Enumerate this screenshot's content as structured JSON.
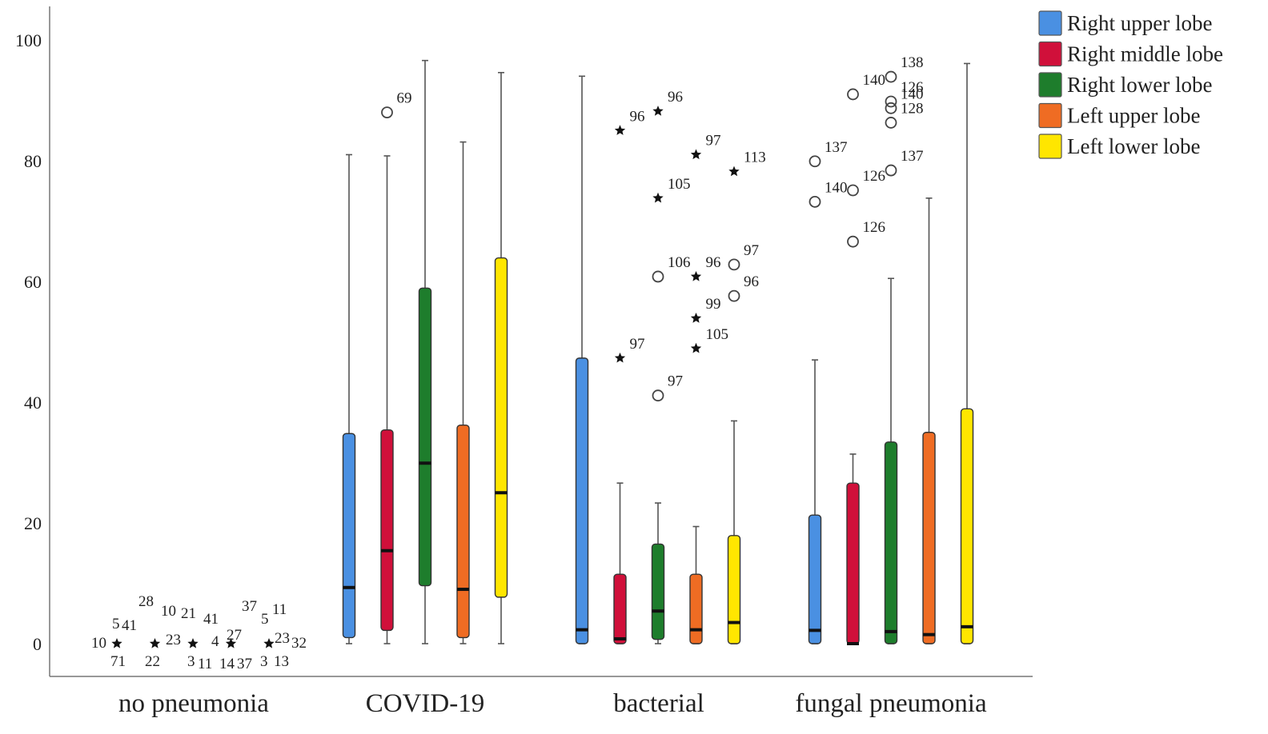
{
  "chart_data": {
    "type": "box",
    "categories": [
      "no pneumonia",
      "COVID-19",
      "bacterial",
      "fungal pneumonia"
    ],
    "ylim": [
      0,
      100
    ],
    "yticks": [
      0,
      20,
      40,
      60,
      80,
      100
    ],
    "legend_position": "top-right",
    "grid": false,
    "series": [
      {
        "name": "Right upper lobe",
        "color": "#4a90e2",
        "boxes": [
          null,
          {
            "whisker_low": 0,
            "q1": 1,
            "median": 9.3,
            "q3": 34.8,
            "whisker_high": 81
          },
          {
            "whisker_low": 0,
            "q1": 0,
            "median": 2.3,
            "q3": 47.3,
            "whisker_high": 94
          },
          {
            "whisker_low": 0,
            "q1": 0,
            "median": 2.2,
            "q3": 21.3,
            "whisker_high": 47
          }
        ]
      },
      {
        "name": "Right middle lobe",
        "color": "#d0103a",
        "boxes": [
          null,
          {
            "whisker_low": 0,
            "q1": 2.2,
            "median": 15.4,
            "q3": 35.4,
            "whisker_high": 80.8
          },
          {
            "whisker_low": 0,
            "q1": 0,
            "median": 0.8,
            "q3": 11.5,
            "whisker_high": 26.6
          },
          {
            "whisker_low": 0,
            "q1": 0,
            "median": 0,
            "q3": 26.6,
            "whisker_high": 31.4
          }
        ]
      },
      {
        "name": "Right lower lobe",
        "color": "#1e7d2c",
        "boxes": [
          null,
          {
            "whisker_low": 0,
            "q1": 9.6,
            "median": 29.9,
            "q3": 58.9,
            "whisker_high": 96.6
          },
          {
            "whisker_low": 0,
            "q1": 0.7,
            "median": 5.4,
            "q3": 16.5,
            "whisker_high": 23.3
          },
          {
            "whisker_low": 0,
            "q1": 0,
            "median": 2,
            "q3": 33.4,
            "whisker_high": 60.5
          }
        ]
      },
      {
        "name": "Left upper lobe",
        "color": "#ef6c23",
        "boxes": [
          null,
          {
            "whisker_low": 0,
            "q1": 1,
            "median": 9,
            "q3": 36.2,
            "whisker_high": 83.1
          },
          {
            "whisker_low": 0,
            "q1": 0,
            "median": 2.3,
            "q3": 11.5,
            "whisker_high": 19.4
          },
          {
            "whisker_low": 0,
            "q1": 0,
            "median": 1.5,
            "q3": 35,
            "whisker_high": 73.8
          }
        ]
      },
      {
        "name": "Left lower lobe",
        "color": "#ffe600",
        "boxes": [
          null,
          {
            "whisker_low": 0,
            "q1": 7.7,
            "median": 25,
            "q3": 63.9,
            "whisker_high": 94.6
          },
          {
            "whisker_low": 0,
            "q1": 0,
            "median": 3.5,
            "q3": 17.9,
            "whisker_high": 36.9
          },
          {
            "whisker_low": 0,
            "q1": 0,
            "median": 2.8,
            "q3": 38.9,
            "whisker_high": 96.1
          }
        ]
      }
    ],
    "outliers": [
      {
        "category": 0,
        "series": 0,
        "value": 0,
        "marker": "star"
      },
      {
        "category": 0,
        "series": 1,
        "value": 0,
        "marker": "star"
      },
      {
        "category": 0,
        "series": 2,
        "value": 0,
        "marker": "star"
      },
      {
        "category": 0,
        "series": 3,
        "value": 0,
        "marker": "star"
      },
      {
        "category": 0,
        "series": 4,
        "value": 0,
        "marker": "star"
      },
      {
        "category": 1,
        "series": 1,
        "value": 88,
        "marker": "circle",
        "label": "69"
      },
      {
        "category": 2,
        "series": 1,
        "value": 85,
        "marker": "star",
        "label": "96"
      },
      {
        "category": 2,
        "series": 1,
        "value": 47.3,
        "marker": "star",
        "label": "97"
      },
      {
        "category": 2,
        "series": 2,
        "value": 88.2,
        "marker": "star",
        "label": "96"
      },
      {
        "category": 2,
        "series": 2,
        "value": 73.8,
        "marker": "star",
        "label": "105"
      },
      {
        "category": 2,
        "series": 2,
        "value": 60.8,
        "marker": "circle",
        "label": "106"
      },
      {
        "category": 2,
        "series": 2,
        "value": 41.1,
        "marker": "circle",
        "label": "97"
      },
      {
        "category": 2,
        "series": 3,
        "value": 81,
        "marker": "star",
        "label": "97"
      },
      {
        "category": 2,
        "series": 3,
        "value": 60.8,
        "marker": "star",
        "label": "96"
      },
      {
        "category": 2,
        "series": 3,
        "value": 53.9,
        "marker": "star",
        "label": "99"
      },
      {
        "category": 2,
        "series": 3,
        "value": 48.9,
        "marker": "star",
        "label": "105"
      },
      {
        "category": 2,
        "series": 4,
        "value": 78.2,
        "marker": "star",
        "label": "113"
      },
      {
        "category": 2,
        "series": 4,
        "value": 62.8,
        "marker": "circle",
        "label": "97"
      },
      {
        "category": 2,
        "series": 4,
        "value": 57.6,
        "marker": "circle",
        "label": "96"
      },
      {
        "category": 3,
        "series": 0,
        "value": 79.9,
        "marker": "circle",
        "label": "137"
      },
      {
        "category": 3,
        "series": 0,
        "value": 73.2,
        "marker": "circle",
        "label": "140"
      },
      {
        "category": 3,
        "series": 1,
        "value": 91,
        "marker": "circle",
        "label": "140"
      },
      {
        "category": 3,
        "series": 1,
        "value": 75.1,
        "marker": "circle",
        "label": "126"
      },
      {
        "category": 3,
        "series": 1,
        "value": 66.6,
        "marker": "circle",
        "label": "126"
      },
      {
        "category": 3,
        "series": 2,
        "value": 93.9,
        "marker": "circle",
        "label": "138"
      },
      {
        "category": 3,
        "series": 2,
        "value": 89.8,
        "marker": "circle",
        "label": "126"
      },
      {
        "category": 3,
        "series": 2,
        "value": 88.7,
        "marker": "circle",
        "label": "140"
      },
      {
        "category": 3,
        "series": 2,
        "value": 86.3,
        "marker": "circle",
        "label": "128"
      },
      {
        "category": 3,
        "series": 2,
        "value": 78.4,
        "marker": "circle",
        "label": "137"
      }
    ],
    "no_pneumonia_case_labels": [
      "5",
      "41",
      "10",
      "71",
      "28",
      "10",
      "21",
      "41",
      "23",
      "3",
      "11",
      "22",
      "4",
      "14",
      "27",
      "37",
      "37",
      "5",
      "11",
      "23",
      "32",
      "3",
      "13"
    ]
  }
}
